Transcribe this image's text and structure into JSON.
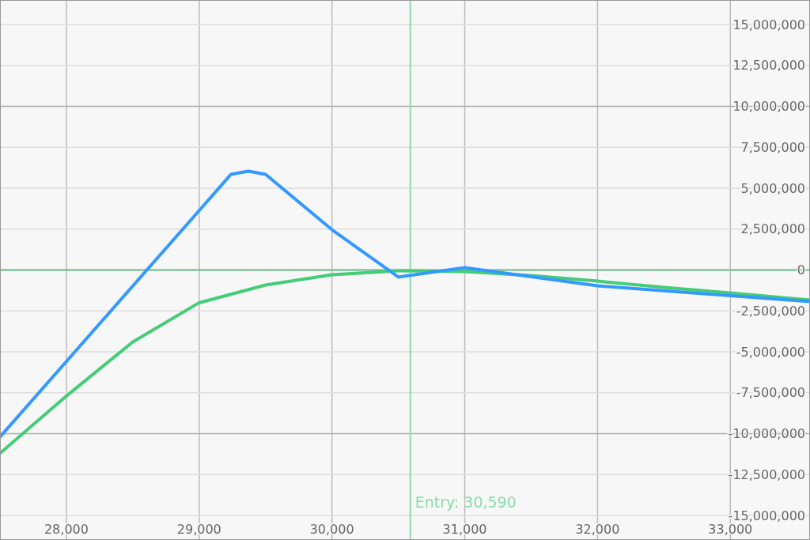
{
  "chart_data": {
    "type": "line",
    "xlim": [
      27500,
      33600
    ],
    "ylim": [
      -16500000,
      16500000
    ],
    "xticks": [
      {
        "value": 28000,
        "label": "28,000"
      },
      {
        "value": 29000,
        "label": "29,000"
      },
      {
        "value": 30000,
        "label": "30,000"
      },
      {
        "value": 31000,
        "label": "31,000"
      },
      {
        "value": 32000,
        "label": "32,000"
      },
      {
        "value": 33000,
        "label": "33,000"
      }
    ],
    "yticks": [
      {
        "value": -15000000,
        "label": "-15,000,000"
      },
      {
        "value": -12500000,
        "label": "-12,500,000"
      },
      {
        "value": -10000000,
        "label": "-10,000,000"
      },
      {
        "value": -7500000,
        "label": "-7,500,000"
      },
      {
        "value": -5000000,
        "label": "-5,000,000"
      },
      {
        "value": -2500000,
        "label": "-2,500,000"
      },
      0,
      {
        "value": 2500000,
        "label": "2,500,000"
      },
      {
        "value": 5000000,
        "label": "5,000,000"
      },
      {
        "value": 7500000,
        "label": "7,500,000"
      },
      {
        "value": 10000000,
        "label": "10,000,000"
      },
      {
        "value": 12500000,
        "label": "12,500,000"
      },
      {
        "value": 15000000,
        "label": "15,000,000"
      }
    ],
    "grid": true,
    "marker": "none",
    "line_style": "solid",
    "ref_lines": [
      {
        "axis": "y",
        "value": 0,
        "color": "#66bb88"
      },
      {
        "axis": "x",
        "value": 30590,
        "label": "Entry: 30,590",
        "color": "#88ddaa"
      }
    ],
    "series": [
      {
        "color": "#44cc77",
        "x": [
          27500,
          28000,
          28500,
          29000,
          29500,
          30000,
          30500,
          31000,
          31500,
          32000,
          32500,
          33000,
          33600
        ],
        "values": [
          -11200000,
          -7700000,
          -4400000,
          -2000000,
          -920000,
          -290000,
          -50000,
          -100000,
          -340000,
          -680000,
          -1060000,
          -1400000,
          -1840000
        ]
      },
      {
        "color": "#3399ff",
        "x": [
          27500,
          29240,
          29370,
          29500,
          30000,
          30500,
          31000,
          32000,
          33600
        ],
        "values": [
          -10200000,
          5850000,
          6040000,
          5850000,
          2460000,
          -430000,
          140000,
          -970000,
          -1930000
        ]
      }
    ]
  }
}
